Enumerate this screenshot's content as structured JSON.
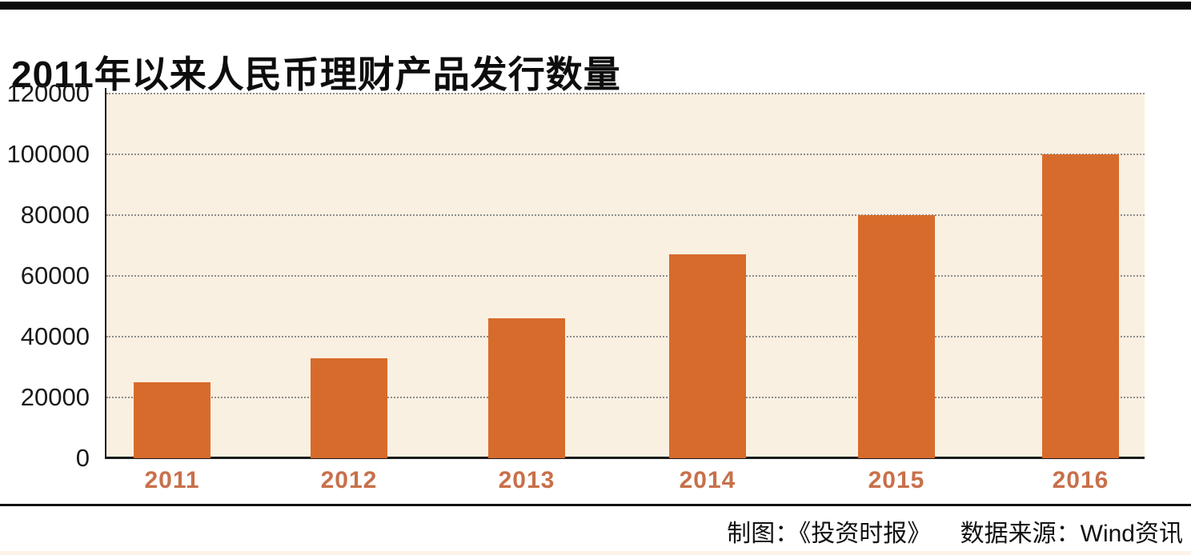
{
  "title": "2011年以来人民币理财产品发行数量",
  "footer": {
    "credit": "制图：《投资时报》",
    "source": "数据来源：Wind资讯"
  },
  "chart_data": {
    "type": "bar",
    "title": "2011年以来人民币理财产品发行数量",
    "categories": [
      "2011",
      "2012",
      "2013",
      "2014",
      "2015",
      "2016"
    ],
    "values": [
      25000,
      33000,
      46000,
      67000,
      80000,
      100000
    ],
    "xlabel": "",
    "ylabel": "",
    "ylim": [
      0,
      120000
    ],
    "yticks": [
      0,
      20000,
      40000,
      60000,
      80000,
      100000,
      120000
    ],
    "grid": "horizontal-dotted",
    "legend": "none",
    "bar_color": "#d76b2b",
    "plot_background": "#faf0e1",
    "axis_color": "#1a1a1a",
    "x_tick_label_color": "#c8704a",
    "y_tick_label_color": "#1a1a1a"
  }
}
